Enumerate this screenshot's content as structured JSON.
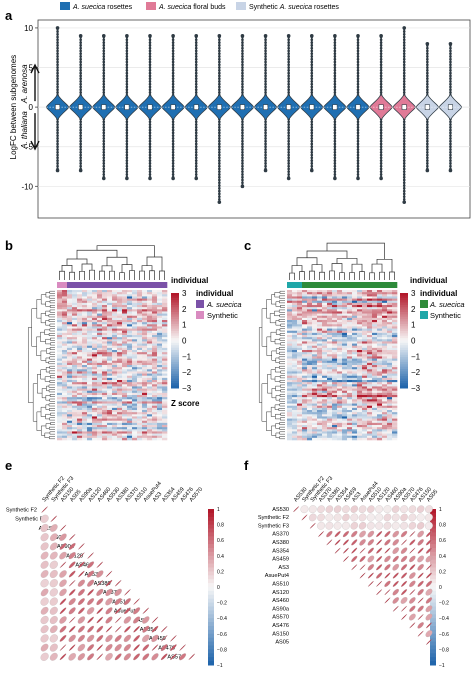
{
  "colors": {
    "rosettes": "#1f6fb2",
    "floral_buds": "#e07a97",
    "synthetic": "#c8d4e6",
    "violin_stroke": "#2f3b44",
    "heat_high": "#b2182b",
    "heat_mid": "#f7f7f7",
    "heat_low": "#2166ac",
    "indiv_suecica_b": "#7b52a8",
    "indiv_synthetic_b": "#d98bc0",
    "indiv_suecica_c": "#2e8b3a",
    "indiv_synthetic_c": "#1fa7a8"
  },
  "panels": {
    "a": "a",
    "b": "b",
    "c": "c",
    "e": "e",
    "f": "f"
  },
  "legend_a": [
    {
      "species": "A. suecica",
      "suffix": " rosettes",
      "color": "#1f6fb2"
    },
    {
      "species": "A. suecica",
      "suffix": " floral buds",
      "color": "#e07a97"
    },
    {
      "species": "",
      "suffix": "Synthetic ",
      "species2": "A. suecica",
      "suffix2": " rosettes",
      "color": "#c8d4e6"
    }
  ],
  "chart_data": [
    {
      "id": "a",
      "type": "violin",
      "ylabel": "LogFC between subgenomes",
      "ylabel_up": "A. arenosa",
      "ylabel_down": "A. thaliana",
      "ylim": [
        -14,
        11
      ],
      "yticks": [
        -10,
        -5,
        0,
        5,
        10
      ],
      "grid": true,
      "series": [
        {
          "group": "A. suecica rosettes",
          "count": 14,
          "whisker_max": [
            10,
            9,
            9,
            9,
            9,
            9,
            9,
            9,
            9,
            9,
            9,
            9,
            9,
            9
          ],
          "whisker_min": [
            -8,
            -8,
            -9,
            -9,
            -9,
            -9,
            -9,
            -12,
            -10,
            -8,
            -9,
            -8,
            -9,
            -9
          ]
        },
        {
          "group": "A. suecica floral buds",
          "count": 2,
          "whisker_max": [
            9,
            10
          ],
          "whisker_min": [
            -9,
            -12
          ]
        },
        {
          "group": "Synthetic A. suecica rosettes",
          "count": 2,
          "whisker_max": [
            8,
            8
          ],
          "whisker_min": [
            -8,
            -8
          ]
        }
      ]
    },
    {
      "id": "b",
      "type": "heatmap",
      "legend_title": "individual",
      "legend_items": [
        "A. suecica",
        "Synthetic"
      ],
      "scale_title": "Z score",
      "scale_ticks": [
        3,
        2,
        1,
        0,
        -1,
        -2,
        -3
      ]
    },
    {
      "id": "c",
      "type": "heatmap",
      "legend_title": "individual",
      "legend_items": [
        "A. suecica",
        "Synthetic"
      ],
      "scale_ticks": [
        3,
        2,
        1,
        0,
        -1,
        -2,
        -3
      ]
    },
    {
      "id": "e",
      "type": "heatmap",
      "labels": [
        "Synthetic F2",
        "Synthetic F3",
        "AS150",
        "AS05",
        "AS90a",
        "AS120",
        "AS460",
        "AS530",
        "AS380",
        "AS370",
        "AS510",
        "AsuePut4",
        "AS3",
        "AS354",
        "AS459",
        "AS476",
        "AS570"
      ],
      "scale_ticks": [
        1,
        0.8,
        0.6,
        0.4,
        0.2,
        0,
        -0.2,
        -0.4,
        -0.6,
        -0.8,
        -1
      ]
    },
    {
      "id": "f",
      "type": "heatmap",
      "labels": [
        "AS530",
        "Synthetic F2",
        "Synthetic F3",
        "AS370",
        "AS380",
        "AS354",
        "AS459",
        "AS3",
        "AsuePut4",
        "AS510",
        "AS120",
        "AS460",
        "AS90a",
        "AS570",
        "AS476",
        "AS150",
        "AS05"
      ],
      "scale_ticks": [
        1,
        0.8,
        0.6,
        0.4,
        0.2,
        0,
        -0.2,
        -0.4,
        -0.6,
        -0.8,
        -1
      ]
    }
  ]
}
